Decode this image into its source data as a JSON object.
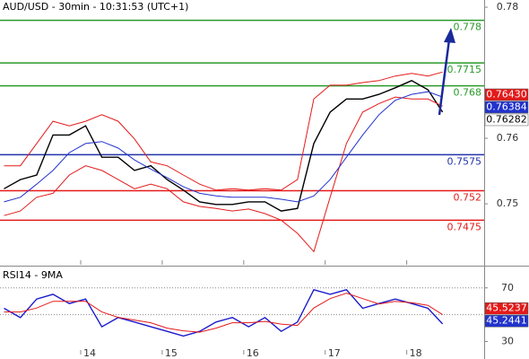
{
  "chart_data": [
    {
      "type": "line",
      "title": "AUD/USD - 30min - 10:31:53 (UTC+1)",
      "x": [
        13.06,
        13.26,
        13.46,
        13.66,
        13.86,
        14.06,
        14.26,
        14.46,
        14.66,
        14.86,
        15.06,
        15.26,
        15.46,
        15.66,
        15.86,
        16.06,
        16.26,
        16.46,
        16.66,
        16.86,
        17.06,
        17.26,
        17.46,
        17.66,
        17.86,
        18.06,
        18.26,
        18.44
      ],
      "series": [
        {
          "color": "#000000",
          "values": [
            0.7523,
            0.7537,
            0.7544,
            0.7605,
            0.7605,
            0.7619,
            0.7571,
            0.7571,
            0.7551,
            0.7558,
            0.7537,
            0.7521,
            0.7503,
            0.7499,
            0.7499,
            0.7503,
            0.7503,
            0.7489,
            0.7493,
            0.7592,
            0.764,
            0.766,
            0.766,
            0.7667,
            0.7677,
            0.7688,
            0.7674,
            0.764
          ]
        },
        {
          "color": "#e41a1a",
          "values": [
            0.7558,
            0.7558,
            0.7592,
            0.7626,
            0.7619,
            0.7626,
            0.7636,
            0.7626,
            0.7599,
            0.7564,
            0.7558,
            0.7544,
            0.753,
            0.7521,
            0.7523,
            0.7521,
            0.7523,
            0.7521,
            0.7537,
            0.766,
            0.7681,
            0.7681,
            0.7685,
            0.7688,
            0.7695,
            0.7699,
            0.7695,
            0.7701
          ]
        },
        {
          "color": "#e41a1a",
          "values": [
            0.7482,
            0.7489,
            0.751,
            0.7516,
            0.7544,
            0.7558,
            0.7551,
            0.7537,
            0.7523,
            0.753,
            0.7523,
            0.7503,
            0.7496,
            0.7493,
            0.7489,
            0.7492,
            0.7485,
            0.7475,
            0.7455,
            0.7427,
            0.751,
            0.7592,
            0.764,
            0.7653,
            0.7663,
            0.766,
            0.766,
            0.7649
          ]
        },
        {
          "color": "#2233cc",
          "values": [
            0.7503,
            0.751,
            0.753,
            0.7551,
            0.7578,
            0.7592,
            0.7595,
            0.7585,
            0.7567,
            0.7553,
            0.754,
            0.7526,
            0.7516,
            0.7512,
            0.751,
            0.751,
            0.751,
            0.7507,
            0.7503,
            0.7512,
            0.7537,
            0.7571,
            0.7605,
            0.7636,
            0.7658,
            0.7667,
            0.7671,
            0.7663
          ]
        }
      ],
      "xlim": [
        13.01,
        18.95
      ],
      "ylim": [
        0.7407,
        0.7811
      ],
      "yticks": [
        0.78,
        0.76,
        0.75
      ],
      "levels": [
        {
          "value": 0.778,
          "color": "#2a9a2a"
        },
        {
          "value": 0.7715,
          "color": "#2a9a2a"
        },
        {
          "value": 0.768,
          "color": "#2a9a2a"
        },
        {
          "value": 0.7575,
          "color": "#2233aa"
        },
        {
          "value": 0.752,
          "color": "#e41a1a"
        },
        {
          "value": 0.7475,
          "color": "#e41a1a"
        }
      ],
      "price_tags": [
        {
          "value": 0.7643,
          "label": "0.76430",
          "color": "#e41a1a",
          "text_color": "#ffffff"
        },
        {
          "value": 0.76384,
          "color": "#2233cc",
          "text_color": "#ffffff"
        },
        {
          "value": 0.76282,
          "color": "#ffffff",
          "text_color": "#000000"
        }
      ]
    },
    {
      "type": "line",
      "title": "RSI14 - 9MA",
      "x": [
        13.06,
        13.26,
        13.46,
        13.66,
        13.86,
        14.06,
        14.26,
        14.46,
        14.66,
        14.86,
        15.06,
        15.26,
        15.46,
        15.66,
        15.86,
        16.06,
        16.26,
        16.46,
        16.66,
        16.86,
        17.06,
        17.26,
        17.46,
        17.66,
        17.86,
        18.06,
        18.26,
        18.44
      ],
      "series": [
        {
          "color": "#1a1acc",
          "values": [
            54.8,
            47.9,
            61.7,
            65.2,
            58.3,
            61.7,
            41.0,
            47.9,
            44.5,
            41.0,
            37.6,
            34.1,
            37.6,
            44.5,
            47.9,
            41.0,
            47.9,
            37.6,
            44.5,
            68.6,
            65.2,
            68.6,
            54.8,
            58.3,
            61.7,
            58.3,
            54.8,
            43.1
          ]
        },
        {
          "color": "#e41a1a",
          "values": [
            52,
            52,
            55,
            60,
            60,
            60,
            52,
            48,
            46,
            44,
            40,
            38,
            37,
            40,
            44,
            44,
            45,
            43,
            42,
            55,
            62,
            66,
            62,
            58,
            60,
            59,
            57,
            50
          ]
        }
      ],
      "xlim": [
        13.01,
        18.95
      ],
      "xticks": [
        14,
        15,
        16,
        17,
        18
      ],
      "ylim": [
        20.3,
        85.9
      ],
      "yticks": [
        70,
        30
      ],
      "reference_lines": [
        70,
        50
      ],
      "price_tags": [
        {
          "value": 45.5237,
          "color": "#e41a1a",
          "text_color": "#ffffff"
        },
        {
          "value": 45.2441,
          "color": "#2233cc",
          "text_color": "#ffffff"
        }
      ]
    }
  ]
}
